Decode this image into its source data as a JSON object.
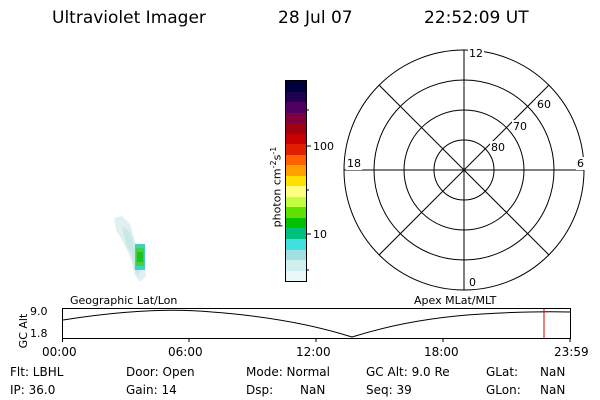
{
  "header": {
    "title": "Ultraviolet Imager",
    "date": "28 Jul 07",
    "time": "22:52:09 UT"
  },
  "colorbar": {
    "label_unit": "photon cm",
    "label_exp1": "-2",
    "label_mid": "s",
    "label_exp2": "-1",
    "tick_labels": [
      "100",
      "10"
    ],
    "colors": [
      "#000040",
      "#200050",
      "#500060",
      "#800040",
      "#a00010",
      "#c80000",
      "#e02000",
      "#ff6000",
      "#ffa000",
      "#ffe000",
      "#ffff80",
      "#c0ff40",
      "#60e000",
      "#00c000",
      "#00c080",
      "#40e0e0",
      "#a0e0e0",
      "#d0f0f0",
      "#e8f8f8"
    ]
  },
  "polar": {
    "top_label": "12",
    "bottom_label": "0",
    "left_label": "18",
    "right_label": "6",
    "ring_labels": [
      "60",
      "70",
      "80"
    ]
  },
  "labels": {
    "left_projection": "Geographic Lat/Lon",
    "right_projection": "Apex MLat/MLT"
  },
  "timeline": {
    "y_axis_label": "GC Alt",
    "y_ticks": [
      "9.0",
      "1.8"
    ],
    "x_ticks": [
      "00:00",
      "06:00",
      "12:00",
      "18:00",
      "23:59"
    ]
  },
  "info": {
    "flt": "Flt: LBHL",
    "ip": "IP: 36.0",
    "door": "Door: Open",
    "gain": "Gain: 14",
    "mode": "Mode: Normal",
    "dsp_label": "Dsp:",
    "dsp_value": "NaN",
    "gcalt": "GC Alt: 9.0 Re",
    "seq": "Seq: 39",
    "glat_label": "GLat:",
    "glat_value": "NaN",
    "glon_label": "GLon:",
    "glon_value": "NaN"
  }
}
